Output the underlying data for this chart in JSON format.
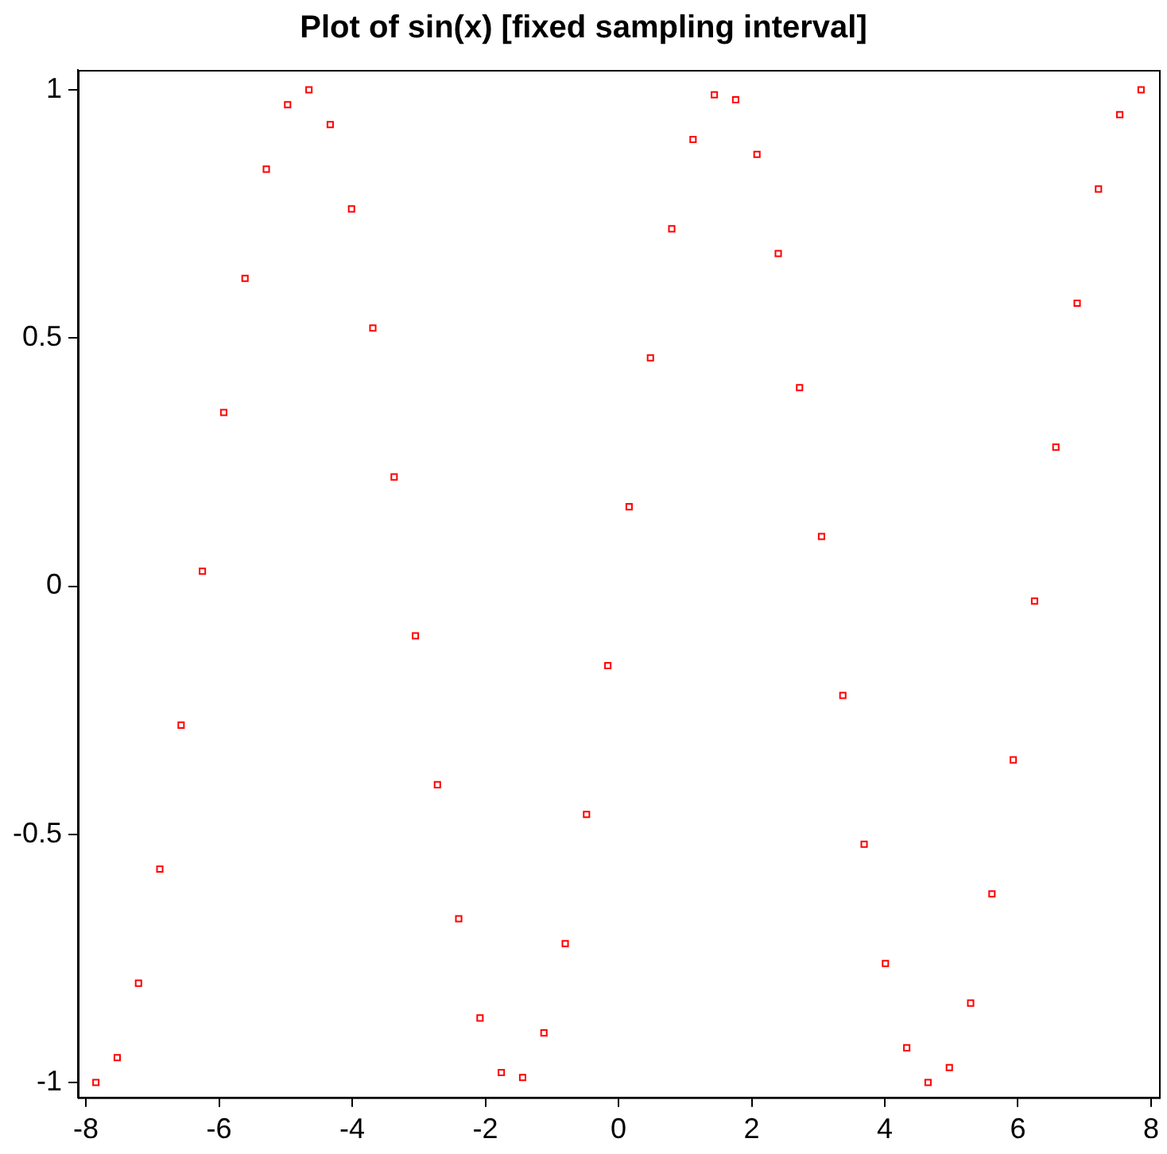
{
  "chart_data": {
    "type": "scatter",
    "title": "Plot of sin(x) [fixed sampling interval]",
    "x": [
      -7.85,
      -7.53,
      -7.21,
      -6.89,
      -6.57,
      -6.25,
      -5.93,
      -5.61,
      -5.29,
      -4.97,
      -4.65,
      -4.33,
      -4.01,
      -3.69,
      -3.37,
      -3.05,
      -2.72,
      -2.4,
      -2.08,
      -1.76,
      -1.44,
      -1.12,
      -0.8,
      -0.48,
      -0.16,
      0.16,
      0.48,
      0.8,
      1.12,
      1.44,
      1.76,
      2.08,
      2.4,
      2.72,
      3.05,
      3.37,
      3.69,
      4.01,
      4.33,
      4.65,
      4.97,
      5.29,
      5.61,
      5.93,
      6.25,
      6.57,
      6.89,
      7.21,
      7.53,
      7.85
    ],
    "series": [
      {
        "color": "#ff0000",
        "values": [
          -1,
          -0.95,
          -0.8,
          -0.57,
          -0.28,
          0.03,
          0.35,
          0.62,
          0.84,
          0.97,
          1.0,
          0.93,
          0.76,
          0.52,
          0.22,
          -0.1,
          -0.4,
          -0.67,
          -0.87,
          -0.98,
          -0.99,
          -0.9,
          -0.72,
          -0.46,
          -0.16,
          0.16,
          0.46,
          0.72,
          0.9,
          0.99,
          0.98,
          0.87,
          0.67,
          0.4,
          0.1,
          -0.22,
          -0.52,
          -0.76,
          -0.93,
          -1.0,
          -0.97,
          -0.84,
          -0.62,
          -0.35,
          -0.03,
          0.28,
          0.57,
          0.8,
          0.95,
          1
        ]
      }
    ],
    "xlim": [
      -8.12,
      8.12
    ],
    "xticks": [
      -8,
      -6,
      -4,
      -2,
      0,
      2,
      4,
      6,
      8
    ],
    "ylim": [
      -1.03,
      1.04
    ],
    "yticks": [
      -1,
      -0.5,
      0,
      0.5,
      1
    ],
    "grid": false,
    "legend": false,
    "marker": "square"
  }
}
